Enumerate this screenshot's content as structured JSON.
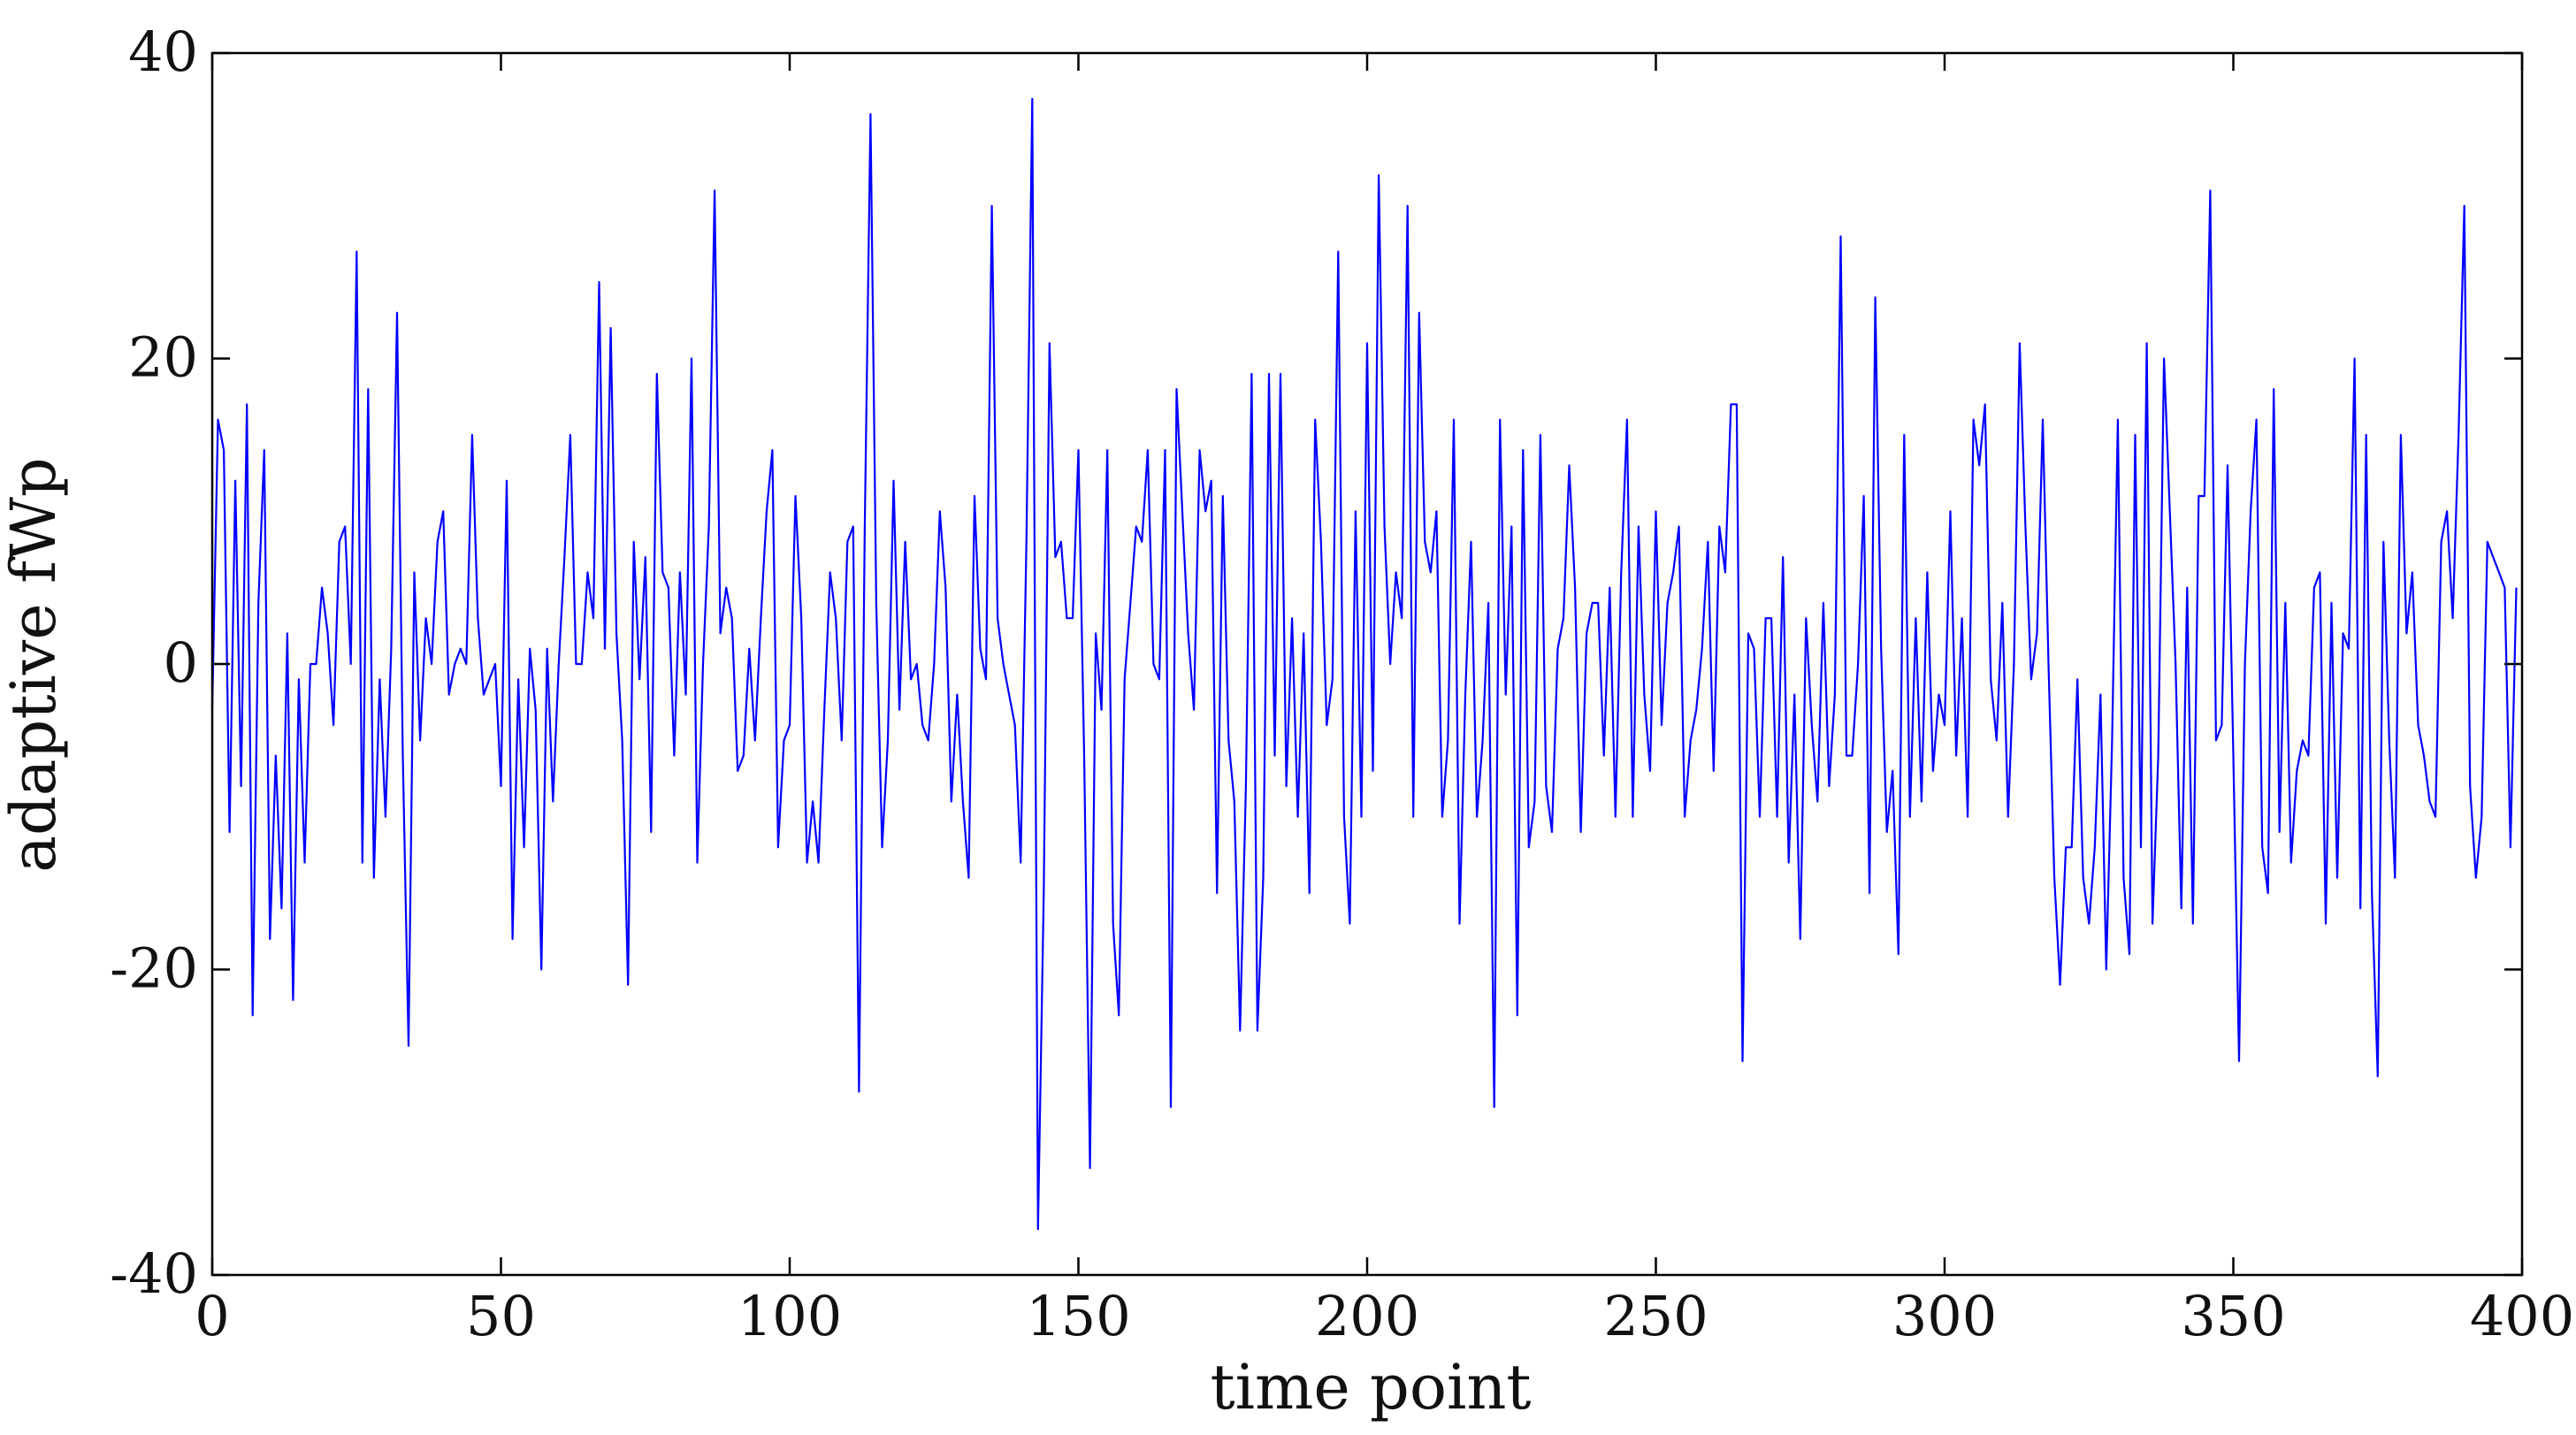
{
  "chart_data": {
    "type": "line",
    "title": "",
    "xlabel": "time point",
    "ylabel": "adaptive fWp",
    "xlim": [
      0,
      400
    ],
    "ylim": [
      -40,
      40
    ],
    "x_ticks": [
      0,
      50,
      100,
      150,
      200,
      250,
      300,
      350,
      400
    ],
    "x_tick_labels": [
      "0",
      "50",
      "100",
      "150",
      "200",
      "250",
      "300",
      "350",
      "400"
    ],
    "y_ticks": [
      40,
      20,
      0,
      -20,
      -40
    ],
    "y_tick_labels": [
      "40",
      "20",
      "0",
      "-20",
      "-40"
    ],
    "grid": false,
    "series": [
      {
        "color": "#0000ff",
        "x_start": 0,
        "x_step": 1,
        "values": [
          -3,
          16,
          14,
          -11,
          12,
          -8,
          17,
          -23,
          4,
          14,
          -18,
          -6,
          -16,
          2,
          -22,
          -1,
          -13,
          0,
          0,
          5,
          2,
          -4,
          8,
          9,
          0,
          27,
          -13,
          18,
          -14,
          -1,
          -10,
          1,
          23,
          -6,
          -25,
          6,
          -5,
          3,
          0,
          8,
          10,
          -2,
          0,
          1,
          0,
          15,
          3,
          -2,
          -1,
          0,
          -8,
          12,
          -18,
          -1,
          -12,
          1,
          -3,
          -20,
          1,
          -9,
          0,
          7,
          15,
          0,
          0,
          6,
          3,
          25,
          1,
          22,
          2,
          -5,
          -21,
          8,
          -1,
          7,
          -11,
          19,
          6,
          5,
          -6,
          6,
          -2,
          20,
          -13,
          0,
          9,
          31,
          2,
          5,
          3,
          -7,
          -6,
          1,
          -5,
          3,
          10,
          14,
          -12,
          -5,
          -4,
          11,
          3,
          -13,
          -9,
          -13,
          -3,
          6,
          3,
          -5,
          8,
          9,
          -28,
          9,
          36,
          4,
          -12,
          -5,
          12,
          -3,
          8,
          -1,
          0,
          -4,
          -5,
          0,
          10,
          5,
          -9,
          -2,
          -9,
          -14,
          11,
          1,
          -1,
          30,
          3,
          0,
          -2,
          -4,
          -13,
          8,
          37,
          -37,
          -15,
          21,
          7,
          8,
          3,
          3,
          14,
          -6,
          -33,
          2,
          -3,
          14,
          -17,
          -23,
          -1,
          4,
          9,
          8,
          14,
          0,
          -1,
          14,
          -29,
          18,
          10,
          2,
          -3,
          14,
          10,
          12,
          -15,
          11,
          -5,
          -9,
          -24,
          -8,
          19,
          -24,
          -14,
          19,
          -6,
          19,
          -8,
          3,
          -10,
          2,
          -15,
          16,
          8,
          -4,
          -1,
          27,
          -10,
          -17,
          10,
          -10,
          21,
          -7,
          32,
          9,
          0,
          6,
          3,
          30,
          -10,
          23,
          8,
          6,
          10,
          -10,
          -5,
          16,
          -17,
          -2,
          8,
          -10,
          -5,
          4,
          -29,
          16,
          -2,
          9,
          -23,
          14,
          -12,
          -9,
          15,
          -8,
          -11,
          1,
          3,
          13,
          5,
          -11,
          2,
          4,
          4,
          -6,
          5,
          -10,
          6,
          16,
          -10,
          9,
          -2,
          -7,
          10,
          -4,
          4,
          6,
          9,
          -10,
          -5,
          -3,
          1,
          8,
          -7,
          9,
          6,
          17,
          17,
          -26,
          2,
          1,
          -10,
          3,
          3,
          -10,
          7,
          -13,
          -2,
          -18,
          3,
          -4,
          -9,
          4,
          -8,
          -2,
          28,
          -6,
          -6,
          0,
          11,
          -15,
          24,
          1,
          -11,
          -7,
          -19,
          15,
          -10,
          3,
          -9,
          6,
          -7,
          -2,
          -4,
          10,
          -6,
          3,
          -10,
          16,
          13,
          17,
          -1,
          -5,
          4,
          -10,
          0,
          21,
          9,
          -1,
          2,
          16,
          0,
          -14,
          -21,
          -12,
          -12,
          -1,
          -14,
          -17,
          -12,
          -2,
          -20,
          -5,
          16,
          -14,
          -19,
          15,
          -12,
          21,
          -17,
          -6,
          20,
          10,
          0,
          -16,
          5,
          -17,
          11,
          11,
          31,
          -5,
          -4,
          13,
          -6,
          -26,
          0,
          10,
          16,
          -12,
          -15,
          18,
          -11,
          4,
          -13,
          -7,
          -5,
          -6,
          5,
          6,
          -17,
          4,
          -14,
          2,
          1,
          20,
          -16,
          15,
          -15,
          -27,
          8,
          -5,
          -14,
          15,
          2,
          6,
          -4,
          -6,
          -9,
          -10,
          8,
          10,
          3,
          15,
          30,
          -8,
          -14,
          -10,
          8,
          7,
          6,
          5,
          -12,
          5
        ]
      }
    ]
  }
}
